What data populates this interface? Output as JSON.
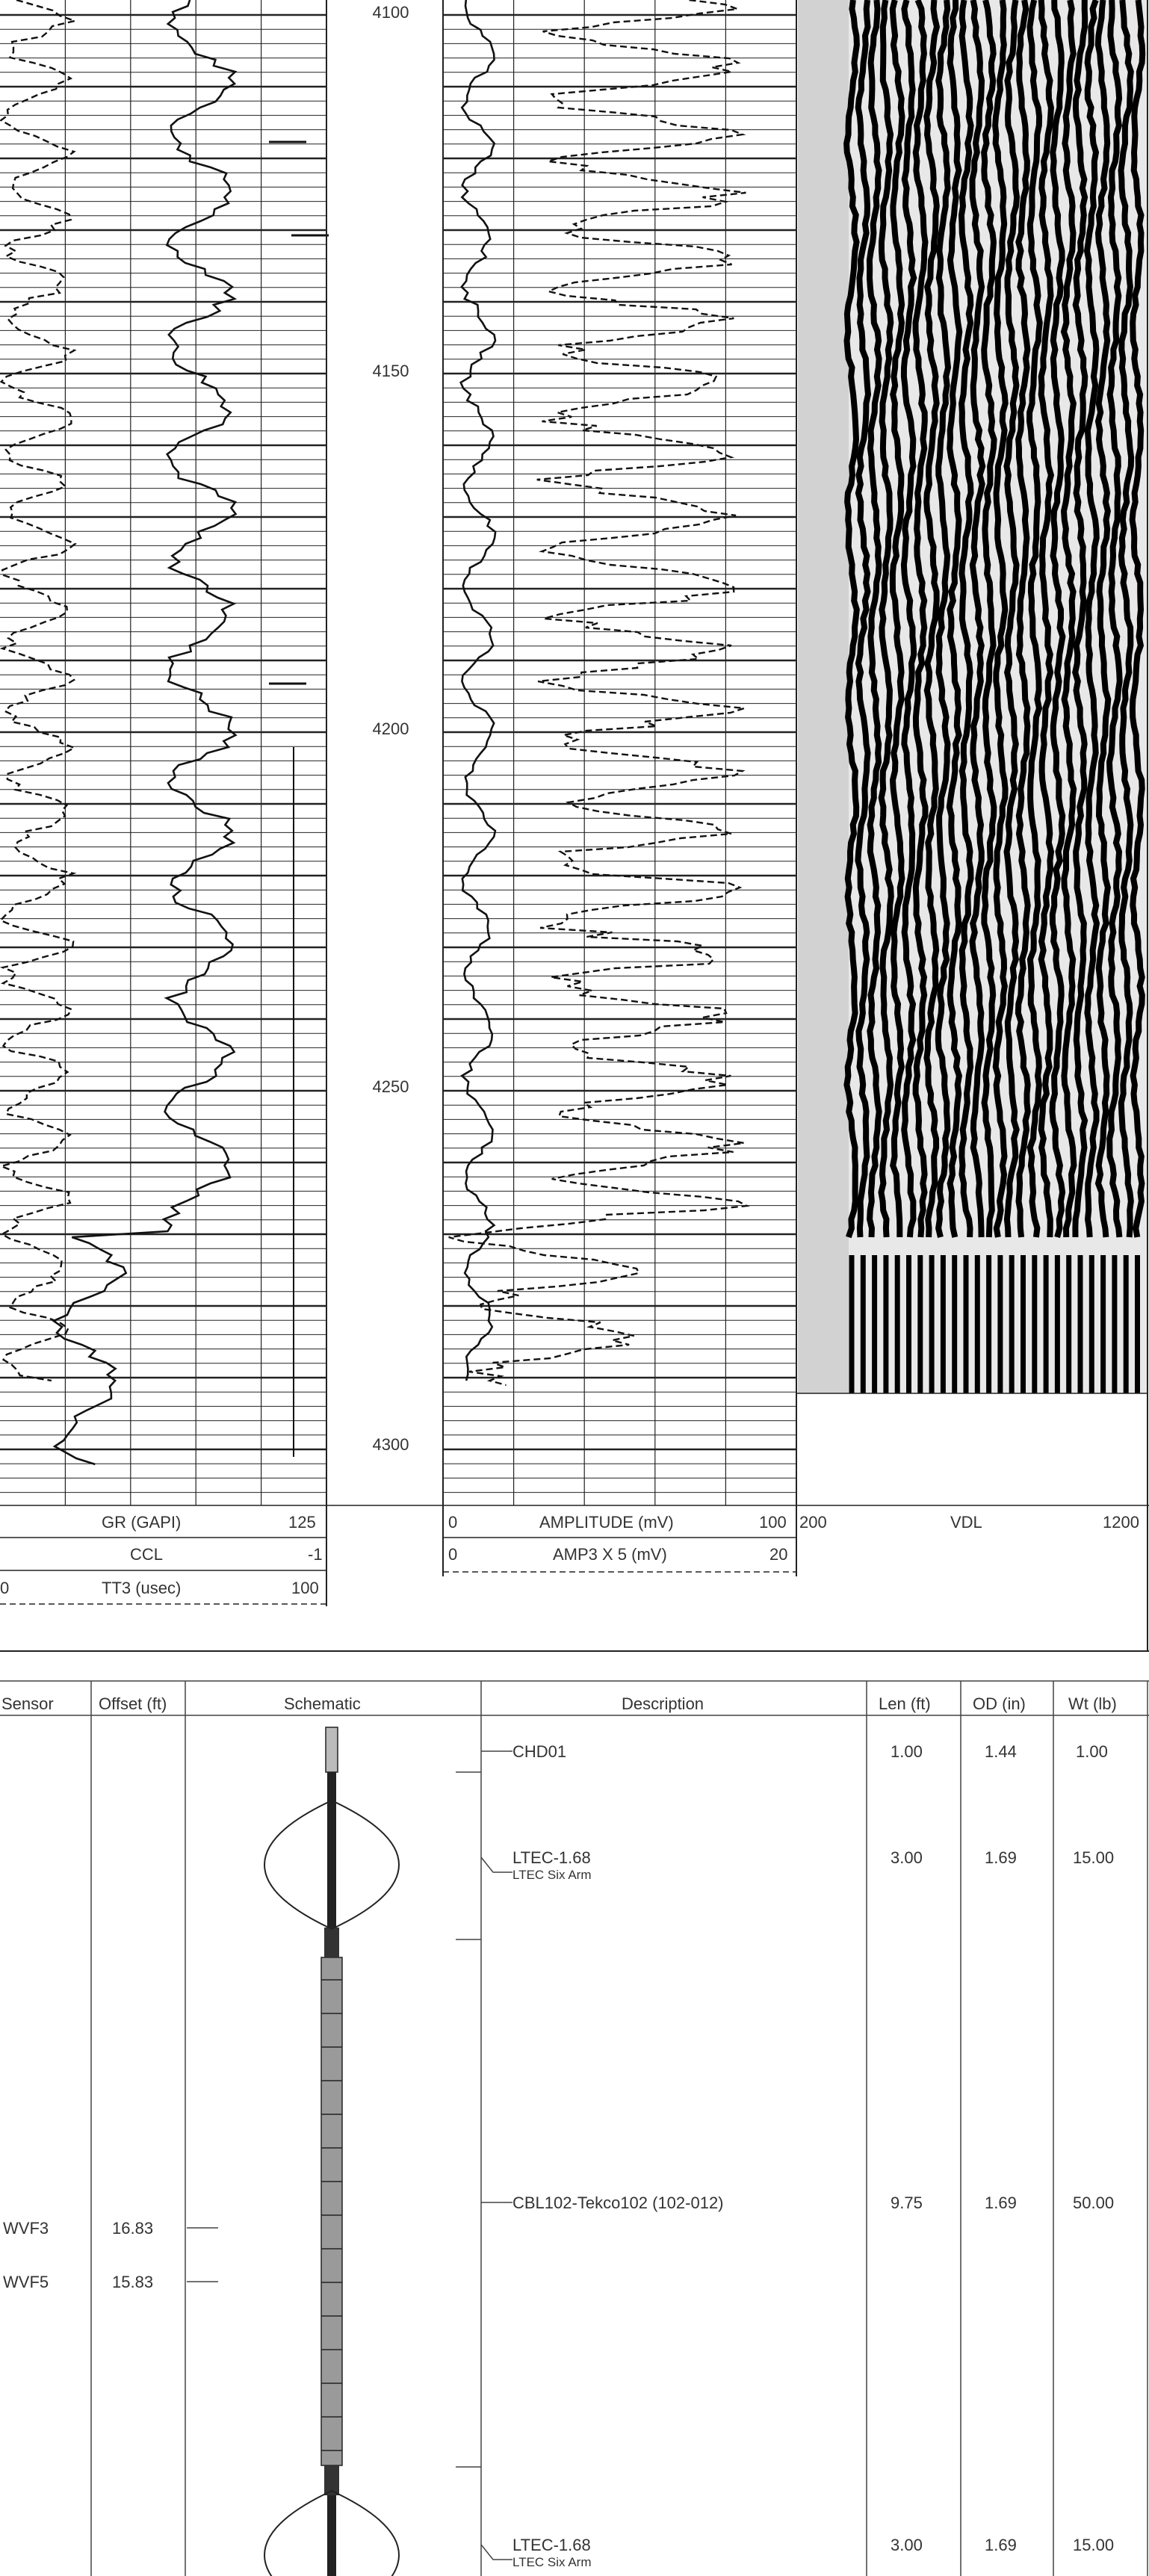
{
  "depth_labels": [
    "4100",
    "4150",
    "4200",
    "4250",
    "4300"
  ],
  "track1_headers": {
    "gr": {
      "name": "GR (GAPI)",
      "right": "125"
    },
    "ccl": {
      "name": "CCL",
      "right": "-1"
    },
    "tt3": {
      "name": "TT3 (usec)",
      "left": "0",
      "right": "100"
    }
  },
  "track2_headers": {
    "amplitude": {
      "name": "AMPLITUDE (mV)",
      "left": "0",
      "right": "100"
    },
    "amp3": {
      "name": "AMP3 X 5 (mV)",
      "left": "0",
      "right": "20"
    }
  },
  "vdl_header": {
    "name": "VDL",
    "left": "200",
    "right": "1200"
  },
  "tool_table": {
    "columns": [
      "Sensor",
      "Offset (ft)",
      "Schematic",
      "Description",
      "Len (ft)",
      "OD (in)",
      "Wt (lb)"
    ],
    "tools": [
      {
        "desc": "CHD01",
        "sub": "",
        "len": "1.00",
        "od": "1.44",
        "wt": "1.00"
      },
      {
        "desc": "LTEC-1.68",
        "sub": "LTEC Six Arm",
        "len": "3.00",
        "od": "1.69",
        "wt": "15.00"
      },
      {
        "desc": "CBL102-Tekco102 (102-012)",
        "sub": "",
        "len": "9.75",
        "od": "1.69",
        "wt": "50.00"
      },
      {
        "desc": "LTEC-1.68",
        "sub": "LTEC Six Arm",
        "len": "3.00",
        "od": "1.69",
        "wt": "15.00"
      }
    ],
    "sensors": [
      {
        "name": "WVF3",
        "offset": "16.83"
      },
      {
        "name": "WVF5",
        "offset": "15.83"
      }
    ]
  }
}
